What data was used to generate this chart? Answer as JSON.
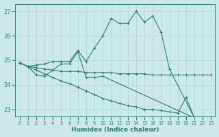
{
  "xlabel": "Humidex (Indice chaleur)",
  "xlim": [
    -0.5,
    23.5
  ],
  "ylim": [
    22.7,
    27.3
  ],
  "yticks": [
    23,
    24,
    25,
    26,
    27
  ],
  "xticks": [
    0,
    1,
    2,
    3,
    4,
    5,
    6,
    7,
    8,
    9,
    10,
    11,
    12,
    13,
    14,
    15,
    16,
    17,
    18,
    19,
    20,
    21,
    22,
    23
  ],
  "background_color": "#cce8e8",
  "grid_color": "#b0d8d8",
  "line_color": "#2e7d6e",
  "lines": [
    {
      "x": [
        0,
        1,
        2,
        3,
        4,
        5,
        6,
        7,
        8,
        9,
        10,
        11,
        12,
        13,
        14,
        15,
        16,
        17,
        18,
        21,
        22,
        23
      ],
      "y": [
        24.9,
        24.75,
        24.8,
        24.85,
        24.95,
        24.95,
        24.95,
        25.4,
        24.95,
        25.5,
        26.0,
        26.7,
        26.5,
        26.5,
        27.0,
        26.55,
        26.8,
        26.15,
        24.65,
        22.65,
        22.6,
        22.55
      ]
    },
    {
      "x": [
        0,
        1,
        2,
        3,
        4,
        5,
        6,
        7,
        8,
        9,
        10,
        11,
        12,
        13,
        14,
        15,
        16,
        17,
        18,
        19,
        20,
        21,
        22,
        23
      ],
      "y": [
        24.9,
        24.75,
        24.7,
        24.65,
        24.6,
        24.55,
        24.55,
        24.55,
        24.5,
        24.5,
        24.5,
        24.5,
        24.45,
        24.45,
        24.45,
        24.45,
        24.4,
        24.4,
        24.4,
        24.4,
        24.4,
        24.4,
        24.4,
        24.4
      ]
    },
    {
      "x": [
        0,
        1,
        2,
        3,
        4,
        5,
        6,
        7,
        8,
        9,
        10,
        21,
        22,
        23
      ],
      "y": [
        24.9,
        24.75,
        24.4,
        24.35,
        24.6,
        24.85,
        24.85,
        25.35,
        24.3,
        24.3,
        24.35,
        22.65,
        22.6,
        22.55
      ]
    },
    {
      "x": [
        0,
        1,
        2,
        3,
        4,
        5,
        6,
        7,
        8,
        9,
        10,
        11,
        12,
        13,
        14,
        15,
        16,
        17,
        18,
        19,
        20,
        21,
        22,
        23
      ],
      "y": [
        24.9,
        24.75,
        24.6,
        24.45,
        24.3,
        24.15,
        24.05,
        23.9,
        23.75,
        23.6,
        23.45,
        23.35,
        23.25,
        23.15,
        23.1,
        23.0,
        23.0,
        22.95,
        22.9,
        22.85,
        23.5,
        22.65,
        22.6,
        22.55
      ]
    }
  ]
}
